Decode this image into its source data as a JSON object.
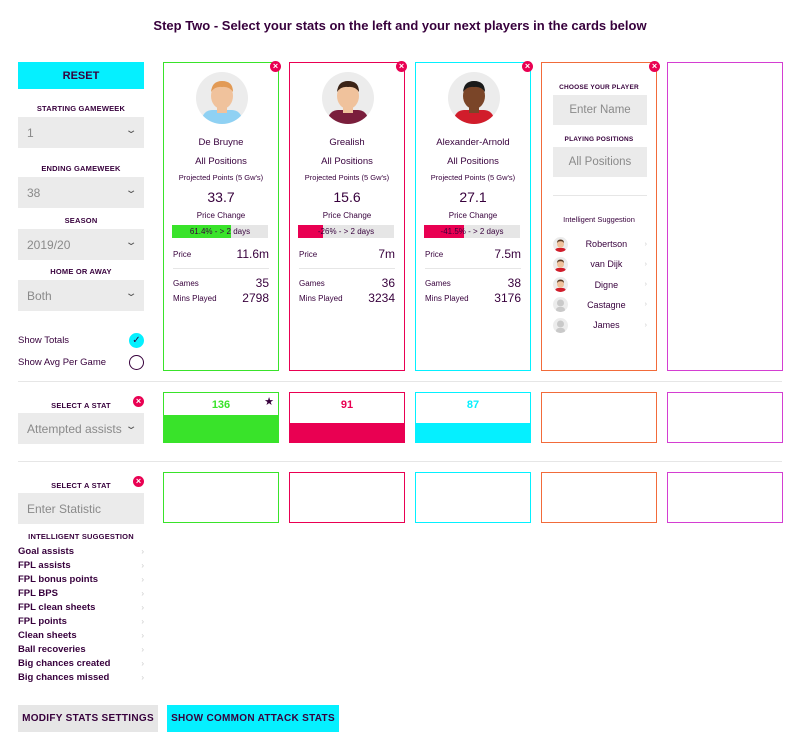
{
  "page": {
    "title": "Step Two - Select your stats on the left and your next players in the cards below"
  },
  "sidebar": {
    "reset_label": "RESET",
    "starting_gameweek": {
      "label": "STARTING GAMEWEEK",
      "value": "1"
    },
    "ending_gameweek": {
      "label": "ENDING GAMEWEEK",
      "value": "38"
    },
    "season": {
      "label": "SEASON",
      "value": "2019/20"
    },
    "home_or_away": {
      "label": "HOME OR AWAY",
      "value": "Both"
    },
    "show_totals": {
      "label": "Show Totals",
      "checked": true
    },
    "show_avg": {
      "label": "Show Avg Per Game",
      "checked": false
    }
  },
  "stat_selector_1": {
    "label": "SELECT A STAT",
    "value": "Attempted assists"
  },
  "stat_selector_2": {
    "label": "SELECT A STAT",
    "placeholder": "Enter Statistic"
  },
  "intelligent_suggestion": {
    "label": "INTELLIGENT SUGGESTION",
    "items": [
      "Goal assists",
      "FPL assists",
      "FPL bonus points",
      "FPL BPS",
      "FPL clean sheets",
      "FPL points",
      "Clean sheets",
      "Ball recoveries",
      "Big chances created",
      "Big chances missed"
    ]
  },
  "buttons": {
    "modify": "MODIFY STATS SETTINGS",
    "common_attack": "SHOW COMMON ATTACK STATS"
  },
  "labels": {
    "positions": "All Positions",
    "projected_points": "Projected Points (5 Gw's)",
    "price_change": "Price Change",
    "price": "Price",
    "games": "Games",
    "mins_played": "Mins Played"
  },
  "players": [
    {
      "name": "De Bruyne",
      "projected": "33.7",
      "price_change_text": "61.4% - > 2 days",
      "price_change_pct": 61.4,
      "price": "11.6m",
      "games": "35",
      "mins": "2798",
      "color": "#39e32a",
      "stat_value": "136",
      "stat_fill": 1.0,
      "best": true,
      "skin": "#f0c29c",
      "hair": "#e29a55",
      "shirt": "#8fd1f3"
    },
    {
      "name": "Grealish",
      "projected": "15.6",
      "price_change_text": "-26% - > 2 days",
      "price_change_pct": 26,
      "price": "7m",
      "games": "36",
      "mins": "3234",
      "color": "#e90052",
      "stat_value": "91",
      "stat_fill": 0.67,
      "best": false,
      "skin": "#f0c29c",
      "hair": "#3b2316",
      "shirt": "#7a1e3c"
    },
    {
      "name": "Alexander-Arnold",
      "projected": "27.1",
      "price_change_text": "-41.5% - > 2 days",
      "price_change_pct": 41.5,
      "price": "7.5m",
      "games": "38",
      "mins": "3176",
      "color": "#05f0ff",
      "stat_value": "87",
      "stat_fill": 0.64,
      "best": false,
      "skin": "#7a4528",
      "hair": "#1a1a1a",
      "shirt": "#d11d2b"
    }
  ],
  "chooser": {
    "choose_label": "CHOOSE YOUR PLAYER",
    "name_placeholder": "Enter Name",
    "positions_label": "PLAYING POSITIONS",
    "positions_value": "All Positions",
    "suggestion_label": "Intelligent Suggestion",
    "suggestions": [
      {
        "name": "Robertson",
        "avatar": "player"
      },
      {
        "name": "van Dijk",
        "avatar": "player"
      },
      {
        "name": "Digne",
        "avatar": "player"
      },
      {
        "name": "Castagne",
        "avatar": "silhouette"
      },
      {
        "name": "James",
        "avatar": "silhouette"
      }
    ]
  },
  "colors": {
    "accent_cyan": "#05f0ff",
    "accent_pink": "#e90052",
    "accent_green": "#39e32a",
    "orange": "#f26b3a",
    "magenta": "#d43ed2",
    "text": "#37003c"
  }
}
